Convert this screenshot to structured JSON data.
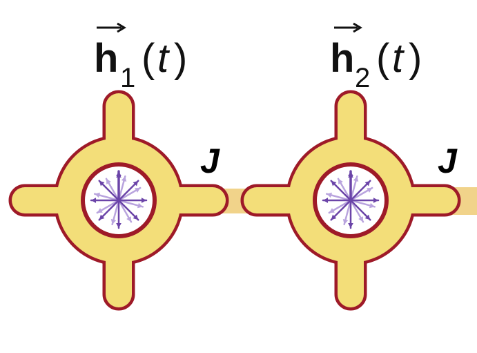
{
  "colors": {
    "body_fill": "#f3de79",
    "body_stroke": "#9e1a28",
    "coupler": "#f1d38a",
    "inner": "#ffffff",
    "arrow_main": "#6b44a8",
    "arrow_light": "#b9a4de",
    "text": "#111111"
  },
  "sites": [
    {
      "name": "site-1",
      "field_symbol": "h",
      "field_index": "1",
      "field_arg_open": "(",
      "field_arg": "t",
      "field_arg_close": ")"
    },
    {
      "name": "site-2",
      "field_symbol": "h",
      "field_index": "2",
      "field_arg_open": "(",
      "field_arg": "t",
      "field_arg_close": ")"
    }
  ],
  "coupling": {
    "label": "J"
  }
}
